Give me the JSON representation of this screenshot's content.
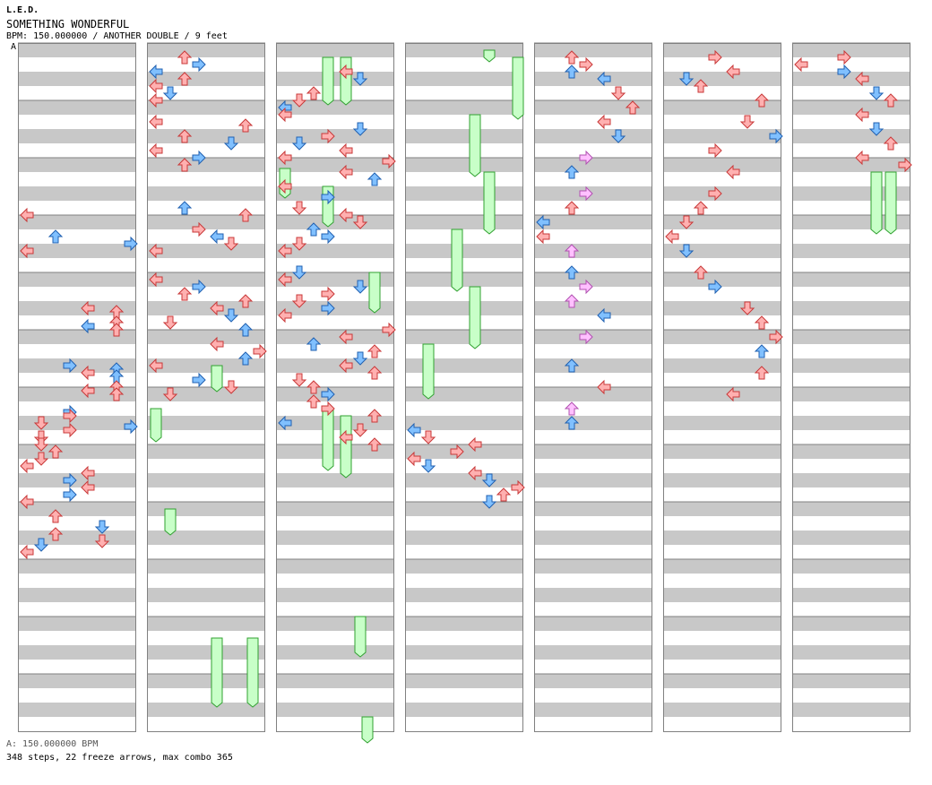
{
  "header": {
    "artist": "L.E.D.",
    "title": "SOMETHING WONDERFUL",
    "bpm_line": "BPM: 150.000000 / ANOTHER DOUBLE / 9 feet",
    "bpm_marker": "A"
  },
  "footer": {
    "bpm_legend": "A: 150.000000 BPM",
    "stats": "348 steps, 22 freeze arrows, max combo 365"
  },
  "colors": {
    "stripe": "#c8c8c8",
    "border": "#808080",
    "red_fill": "#ffb0b0",
    "red_stroke": "#c83838",
    "blue_fill": "#80c0ff",
    "blue_stroke": "#2060b0",
    "pink_fill": "#ffc0ff",
    "pink_stroke": "#b050b0",
    "freeze_fill": "#c8ffc8",
    "freeze_stroke": "#30a030"
  },
  "chart_data": {
    "type": "step-chart",
    "mode": "double",
    "lanes": [
      "P1-left",
      "P1-down",
      "P1-up",
      "P1-right",
      "P2-left",
      "P2-down",
      "P2-up",
      "P2-right"
    ],
    "columns": 7,
    "measures_per_column": 12,
    "steps": 348,
    "freeze_arrows": 22,
    "max_combo": 365,
    "notes": [
      [
        [
          46,
          0,
          "r"
        ],
        [
          52,
          4,
          "b"
        ],
        [
          54,
          14,
          "b"
        ],
        [
          56,
          0,
          "r"
        ],
        [
          72,
          8,
          "r"
        ],
        [
          73,
          12,
          "r"
        ],
        [
          76,
          12,
          "r"
        ],
        [
          77,
          8,
          "b"
        ],
        [
          78,
          12,
          "r"
        ],
        [
          88,
          6,
          "b"
        ],
        [
          89,
          12,
          "b"
        ],
        [
          90,
          8,
          "r"
        ],
        [
          91,
          12,
          "b"
        ],
        [
          94,
          12,
          "r"
        ],
        [
          95,
          8,
          "r"
        ],
        [
          96,
          12,
          "r"
        ],
        [
          101,
          6,
          "b"
        ],
        [
          102,
          6,
          "r"
        ],
        [
          104,
          2,
          "r"
        ],
        [
          105,
          14,
          "b"
        ],
        [
          106,
          6,
          "r"
        ],
        [
          108,
          2,
          "r"
        ],
        [
          110,
          2,
          "r"
        ],
        [
          112,
          4,
          "r"
        ],
        [
          114,
          2,
          "r"
        ],
        [
          116,
          0,
          "r"
        ],
        [
          118,
          8,
          "r"
        ],
        [
          120,
          6,
          "b"
        ],
        [
          122,
          8,
          "r"
        ],
        [
          124,
          6,
          "b"
        ],
        [
          126,
          0,
          "r"
        ],
        [
          130,
          4,
          "r"
        ],
        [
          133,
          10,
          "b"
        ],
        [
          135,
          4,
          "r"
        ],
        [
          137,
          10,
          "r"
        ],
        [
          138,
          2,
          "b"
        ],
        [
          140,
          0,
          "r"
        ]
      ],
      [
        [
          2,
          4,
          "r"
        ],
        [
          4,
          6,
          "b"
        ],
        [
          6,
          0,
          "b"
        ],
        [
          8,
          4,
          "r"
        ],
        [
          10,
          0,
          "r"
        ],
        [
          12,
          2,
          "b"
        ],
        [
          14,
          0,
          "r"
        ],
        [
          20,
          0,
          "r"
        ],
        [
          21,
          12,
          "r"
        ],
        [
          24,
          4,
          "r"
        ],
        [
          26,
          10,
          "b"
        ],
        [
          28,
          0,
          "r"
        ],
        [
          30,
          6,
          "b"
        ],
        [
          32,
          4,
          "r"
        ],
        [
          44,
          4,
          "b"
        ],
        [
          46,
          12,
          "r"
        ],
        [
          50,
          6,
          "r"
        ],
        [
          52,
          8,
          "b"
        ],
        [
          54,
          10,
          "r"
        ],
        [
          56,
          0,
          "r"
        ],
        [
          64,
          0,
          "r"
        ],
        [
          66,
          6,
          "b"
        ],
        [
          68,
          4,
          "r"
        ],
        [
          70,
          12,
          "r"
        ],
        [
          72,
          8,
          "r"
        ],
        [
          74,
          10,
          "b"
        ],
        [
          76,
          2,
          "r"
        ],
        [
          78,
          12,
          "b"
        ],
        [
          82,
          8,
          "r"
        ],
        [
          84,
          14,
          "r"
        ],
        [
          86,
          12,
          "b"
        ],
        [
          88,
          0,
          "r"
        ],
        [
          92,
          6,
          "b"
        ],
        [
          94,
          10,
          "r"
        ],
        [
          96,
          2,
          "r"
        ]
      ],
      [
        [
          6,
          8,
          "r"
        ],
        [
          8,
          10,
          "b"
        ],
        [
          12,
          4,
          "r"
        ],
        [
          14,
          2,
          "r"
        ],
        [
          16,
          0,
          "b"
        ],
        [
          18,
          0,
          "r"
        ],
        [
          22,
          10,
          "b"
        ],
        [
          24,
          6,
          "r"
        ],
        [
          26,
          2,
          "b"
        ],
        [
          28,
          8,
          "r"
        ],
        [
          30,
          0,
          "r"
        ],
        [
          31,
          14,
          "r"
        ],
        [
          34,
          8,
          "r"
        ],
        [
          36,
          12,
          "b"
        ],
        [
          38,
          0,
          "r"
        ],
        [
          41,
          6,
          "b"
        ],
        [
          44,
          2,
          "r"
        ],
        [
          46,
          8,
          "r"
        ],
        [
          48,
          10,
          "r"
        ],
        [
          50,
          4,
          "b"
        ],
        [
          52,
          6,
          "b"
        ],
        [
          54,
          2,
          "r"
        ],
        [
          56,
          0,
          "r"
        ],
        [
          62,
          2,
          "b"
        ],
        [
          64,
          0,
          "r"
        ],
        [
          66,
          10,
          "b"
        ],
        [
          68,
          6,
          "r"
        ],
        [
          70,
          2,
          "r"
        ],
        [
          72,
          6,
          "b"
        ],
        [
          74,
          0,
          "r"
        ],
        [
          78,
          14,
          "r"
        ],
        [
          80,
          8,
          "r"
        ],
        [
          82,
          4,
          "b"
        ],
        [
          84,
          12,
          "r"
        ],
        [
          86,
          10,
          "b"
        ],
        [
          88,
          8,
          "r"
        ],
        [
          90,
          12,
          "r"
        ],
        [
          92,
          2,
          "r"
        ],
        [
          94,
          4,
          "r"
        ],
        [
          96,
          6,
          "b"
        ],
        [
          98,
          4,
          "r"
        ],
        [
          100,
          6,
          "r"
        ],
        [
          102,
          12,
          "r"
        ],
        [
          104,
          0,
          "b"
        ],
        [
          106,
          10,
          "r"
        ],
        [
          108,
          8,
          "r"
        ],
        [
          110,
          12,
          "r"
        ]
      ]
    ]
  }
}
